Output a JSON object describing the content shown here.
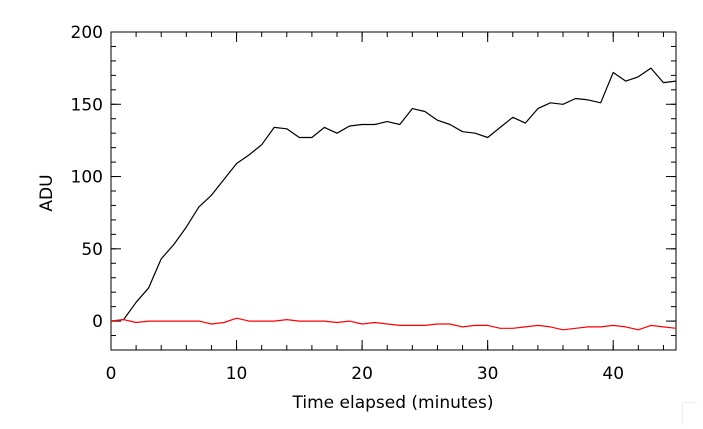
{
  "chart_data": {
    "type": "line",
    "title": "",
    "xlabel": "Time elapsed (minutes)",
    "ylabel": "ADU",
    "xlim": [
      0,
      45
    ],
    "ylim": [
      -20,
      200
    ],
    "x_ticks": [
      0,
      10,
      20,
      30,
      40
    ],
    "y_ticks": [
      0,
      50,
      100,
      150,
      200
    ],
    "x_minor_step": 2,
    "y_minor_step": 10,
    "grid": false,
    "legend": "none",
    "series": [
      {
        "color": "#000000",
        "x": [
          0,
          1,
          2,
          3,
          4,
          5,
          6,
          7,
          8,
          9,
          10,
          11,
          12,
          13,
          14,
          15,
          16,
          17,
          18,
          19,
          20,
          21,
          22,
          23,
          24,
          25,
          26,
          27,
          28,
          29,
          30,
          31,
          32,
          33,
          34,
          35,
          36,
          37,
          38,
          39,
          40,
          41,
          42,
          43,
          44,
          45
        ],
        "values": [
          0,
          1,
          13,
          23,
          43,
          53,
          65,
          79,
          87,
          98,
          109,
          115,
          122,
          134,
          133,
          127,
          127,
          134,
          130,
          135,
          136,
          136,
          138,
          136,
          147,
          145,
          139,
          136,
          131,
          130,
          127,
          134,
          141,
          137,
          147,
          151,
          150,
          154,
          153,
          151,
          172,
          166,
          169,
          175,
          165,
          166
        ]
      },
      {
        "color": "#ff0000",
        "x": [
          0,
          1,
          2,
          3,
          4,
          5,
          6,
          7,
          8,
          9,
          10,
          11,
          12,
          13,
          14,
          15,
          16,
          17,
          18,
          19,
          20,
          21,
          22,
          23,
          24,
          25,
          26,
          27,
          28,
          29,
          30,
          31,
          32,
          33,
          34,
          35,
          36,
          37,
          38,
          39,
          40,
          41,
          42,
          43,
          44,
          45
        ],
        "values": [
          0,
          1,
          -1,
          0,
          0,
          0,
          0,
          0,
          -2,
          -1,
          2,
          0,
          0,
          0,
          1,
          0,
          0,
          0,
          -1,
          0,
          -2,
          -1,
          -2,
          -3,
          -3,
          -3,
          -2,
          -2,
          -4,
          -3,
          -3,
          -5,
          -5,
          -4,
          -3,
          -4,
          -6,
          -5,
          -4,
          -4,
          -3,
          -4,
          -6,
          -3,
          -4,
          -5
        ]
      }
    ]
  }
}
